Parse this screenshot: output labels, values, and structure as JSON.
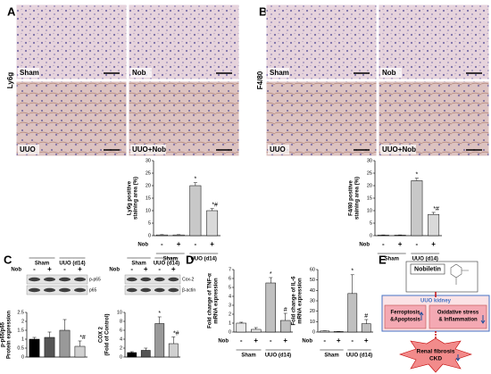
{
  "panel_labels": [
    "A",
    "B",
    "C",
    "D",
    "E"
  ],
  "micrographs": [
    {
      "stain": "Ly6g",
      "labels": [
        "Sham",
        "Nob",
        "UUO",
        "UUO+Nob"
      ]
    },
    {
      "stain": "F4/80",
      "labels": [
        "Sham",
        "Nob",
        "UUO",
        "UUO+Nob"
      ]
    }
  ],
  "chart_data": [
    {
      "type": "bar",
      "ylabel": [
        "Ly6g positive",
        "staining area (%)"
      ],
      "factor": "Nob",
      "categories": [
        "-",
        "+",
        "-",
        "+"
      ],
      "groups": [
        "Sham",
        "UUO (d14)"
      ],
      "values": [
        0.3,
        0.3,
        20,
        10
      ],
      "errors": [
        0.1,
        0.1,
        1.2,
        0.8
      ],
      "colors": [
        "#ffffff",
        "#ffffff",
        "#c8c8c8",
        "#d9d9d9"
      ],
      "annotations": [
        null,
        null,
        "*",
        "*#"
      ],
      "ylim": [
        0,
        30
      ],
      "yticks": [
        0,
        5,
        10,
        15,
        20,
        25,
        30
      ]
    },
    {
      "type": "bar",
      "ylabel": [
        "F4/80 positive",
        "staining area (%)"
      ],
      "factor": "Nob",
      "categories": [
        "-",
        "+",
        "-",
        "+"
      ],
      "groups": [
        "Sham",
        "UUO (d14)"
      ],
      "values": [
        0.2,
        0.2,
        22,
        8.5
      ],
      "errors": [
        0.1,
        0.1,
        1,
        0.8
      ],
      "colors": [
        "#ffffff",
        "#ffffff",
        "#c8c8c8",
        "#d9d9d9"
      ],
      "annotations": [
        null,
        null,
        "*",
        "*#"
      ],
      "ylim": [
        0,
        30
      ],
      "yticks": [
        0,
        5,
        10,
        15,
        20,
        25,
        30
      ]
    },
    {
      "type": "bar",
      "ylabel": [
        "p-p65/p65",
        "Protein expression"
      ],
      "factor": "Nob",
      "categories": [
        "-",
        "+",
        "-",
        "+"
      ],
      "groups": [
        "Sham",
        "UUO (d14)"
      ],
      "blot_bands": [
        "p-p65",
        "p65"
      ],
      "values": [
        1,
        1.1,
        1.5,
        0.6
      ],
      "errors": [
        0.1,
        0.3,
        0.6,
        0.3
      ],
      "colors": [
        "#000000",
        "#555555",
        "#999999",
        "#d0d0d0"
      ],
      "annotations": [
        null,
        null,
        null,
        "*#"
      ],
      "ylim": [
        0,
        2.5
      ],
      "yticks": [
        0,
        0.5,
        1,
        1.5,
        2,
        2.5
      ]
    },
    {
      "type": "bar",
      "ylabel": [
        "COX 2",
        "(Fold of Control)"
      ],
      "factor": "Nob",
      "categories": [
        "-",
        "+",
        "-",
        "+"
      ],
      "groups": [
        "Sham",
        "UUO (d14)"
      ],
      "blot_bands": [
        "Cox-2",
        "β-actin"
      ],
      "values": [
        1,
        1.5,
        7.5,
        3
      ],
      "errors": [
        0.2,
        0.5,
        1.5,
        1.5
      ],
      "colors": [
        "#000000",
        "#555555",
        "#999999",
        "#d0d0d0"
      ],
      "annotations": [
        null,
        null,
        "*",
        "*#"
      ],
      "ylim": [
        0,
        10
      ],
      "yticks": [
        0,
        2,
        4,
        6,
        8,
        10
      ]
    },
    {
      "type": "bar",
      "ylabel": [
        "Fold change of TNF-α",
        "mRNA expression"
      ],
      "factor": "Nob",
      "categories": [
        "-",
        "+",
        "-",
        "+"
      ],
      "groups": [
        "Sham",
        "UUO (d14)"
      ],
      "values": [
        1,
        0.3,
        5.5,
        1.3
      ],
      "errors": [
        0.1,
        0.2,
        0.6,
        0.8
      ],
      "colors": [
        "#e8e8e8",
        "#e8e8e8",
        "#c0c0c0",
        "#c0c0c0"
      ],
      "annotations": [
        null,
        null,
        "*",
        "#"
      ],
      "ylim": [
        0,
        7
      ],
      "yticks": [
        0,
        1,
        2,
        3,
        4,
        5,
        6,
        7
      ]
    },
    {
      "type": "bar",
      "ylabel": [
        "Fold change of IL-6",
        "mRNA expression"
      ],
      "factor": "Nob",
      "categories": [
        "-",
        "+",
        "-",
        "+"
      ],
      "groups": [
        "Sham",
        "UUO (d14)"
      ],
      "values": [
        1,
        0.5,
        37,
        8
      ],
      "errors": [
        0.2,
        0.2,
        18,
        4
      ],
      "colors": [
        "#e8e8e8",
        "#e8e8e8",
        "#c0c0c0",
        "#c0c0c0"
      ],
      "annotations": [
        null,
        null,
        "*",
        "#"
      ],
      "ylim": [
        0,
        60
      ],
      "yticks": [
        0,
        10,
        20,
        30,
        40,
        50,
        60
      ]
    }
  ],
  "diagram": {
    "compound": "Nobiletin",
    "model": "UUO kidney",
    "left_box": [
      "Ferroptosis",
      "&Apoptosis"
    ],
    "right_box": [
      "Oxidative stress",
      "& Inflammation"
    ],
    "outcome": [
      "Renal fibrosis",
      "CKD"
    ]
  }
}
